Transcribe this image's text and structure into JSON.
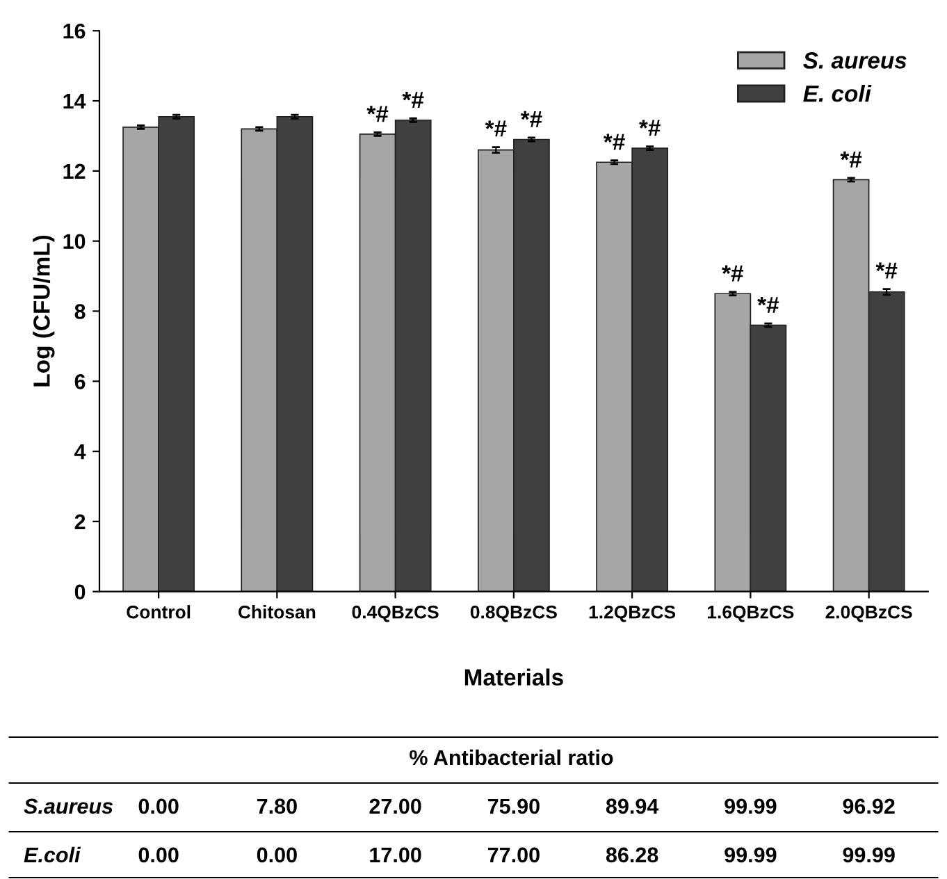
{
  "chart_data": {
    "type": "bar",
    "xlabel": "Materials",
    "ylabel": "Log (CFU/mL)",
    "categories": [
      "Control",
      "Chitosan",
      "0.4QBzCS",
      "0.8QBzCS",
      "1.2QBzCS",
      "1.6QBzCS",
      "2.0QBzCS"
    ],
    "series": [
      {
        "name": "S. aureus",
        "color": "#a6a6a6",
        "values": [
          13.25,
          13.2,
          13.05,
          12.6,
          12.25,
          8.5,
          11.75
        ],
        "errors": [
          0.05,
          0.05,
          0.05,
          0.08,
          0.05,
          0.05,
          0.05
        ],
        "value_labels": [
          null,
          null,
          "*#",
          "*#",
          "*#",
          "*#",
          "*#"
        ]
      },
      {
        "name": "E. coli",
        "color": "#404040",
        "values": [
          13.55,
          13.55,
          13.45,
          12.9,
          12.65,
          7.6,
          8.55
        ],
        "errors": [
          0.05,
          0.05,
          0.05,
          0.05,
          0.05,
          0.05,
          0.08
        ],
        "value_labels": [
          null,
          null,
          "*#",
          "*#",
          "*#",
          "*#",
          "*#"
        ]
      }
    ],
    "ylim": [
      0,
      16
    ],
    "yticks": [
      0,
      2,
      4,
      6,
      8,
      10,
      12,
      14,
      16
    ],
    "legend": "top right",
    "annotations": [
      "% Antibacterial ratio",
      "S.aureus",
      "0.00",
      "7.80",
      "27.00",
      "75.90",
      "89.94",
      "99.99",
      "96.92",
      "E.coli",
      "0.00",
      "0.00",
      "17.00",
      "77.00",
      "86.28",
      "99.99",
      "99.99"
    ]
  }
}
